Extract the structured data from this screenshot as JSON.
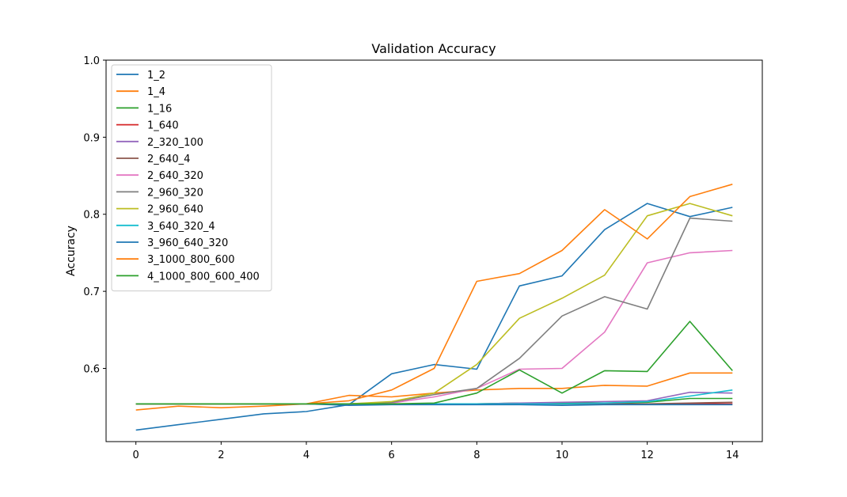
{
  "chart_data": {
    "type": "line",
    "title": "Validation Accuracy",
    "xlabel": "",
    "ylabel": "Accuracy",
    "xlim": [
      -0.7,
      14.7
    ],
    "ylim": [
      0.505,
      1.0
    ],
    "xticks": [
      0,
      2,
      4,
      6,
      8,
      10,
      12,
      14
    ],
    "yticks": [
      0.6,
      0.7,
      0.8,
      0.9,
      1.0
    ],
    "grid": false,
    "legend_position": "upper-left",
    "x": [
      0,
      1,
      2,
      3,
      4,
      5,
      6,
      7,
      8,
      9,
      10,
      11,
      12,
      13,
      14
    ],
    "series": [
      {
        "name": "1_2",
        "color": "#1f77b4",
        "values": [
          0.52,
          0.527,
          0.534,
          0.541,
          0.544,
          0.553,
          0.593,
          0.605,
          0.599,
          0.707,
          0.72,
          0.78,
          0.814,
          0.797,
          0.809
        ]
      },
      {
        "name": "1_4",
        "color": "#ff7f0e",
        "values": [
          0.546,
          0.551,
          0.549,
          0.551,
          0.554,
          0.565,
          0.563,
          0.568,
          0.572,
          0.574,
          0.574,
          0.578,
          0.577,
          0.594,
          0.594
        ]
      },
      {
        "name": "1_16",
        "color": "#2ca02c",
        "values": [
          0.554,
          0.554,
          0.554,
          0.554,
          0.554,
          0.554,
          0.554,
          0.554,
          0.554,
          0.555,
          0.555,
          0.555,
          0.556,
          0.561,
          0.561
        ]
      },
      {
        "name": "1_640",
        "color": "#d62728",
        "values": [
          0.554,
          0.554,
          0.554,
          0.554,
          0.554,
          0.554,
          0.554,
          0.554,
          0.554,
          0.554,
          0.554,
          0.554,
          0.554,
          0.554,
          0.554
        ]
      },
      {
        "name": "2_320_100",
        "color": "#9467bd",
        "values": [
          0.554,
          0.554,
          0.554,
          0.554,
          0.554,
          0.554,
          0.554,
          0.554,
          0.554,
          0.555,
          0.556,
          0.557,
          0.558,
          0.569,
          0.568
        ]
      },
      {
        "name": "2_640_4",
        "color": "#8c564b",
        "values": [
          0.554,
          0.554,
          0.554,
          0.554,
          0.554,
          0.554,
          0.554,
          0.554,
          0.554,
          0.554,
          0.554,
          0.554,
          0.554,
          0.555,
          0.556
        ]
      },
      {
        "name": "2_640_320",
        "color": "#e377c2",
        "values": [
          0.554,
          0.554,
          0.554,
          0.554,
          0.554,
          0.554,
          0.555,
          0.563,
          0.574,
          0.599,
          0.6,
          0.647,
          0.737,
          0.75,
          0.753
        ]
      },
      {
        "name": "2_960_320",
        "color": "#7f7f7f",
        "values": [
          0.554,
          0.554,
          0.554,
          0.554,
          0.554,
          0.554,
          0.556,
          0.566,
          0.574,
          0.613,
          0.668,
          0.693,
          0.677,
          0.795,
          0.791
        ]
      },
      {
        "name": "2_960_640",
        "color": "#bcbd22",
        "values": [
          0.554,
          0.554,
          0.554,
          0.554,
          0.554,
          0.554,
          0.557,
          0.568,
          0.605,
          0.665,
          0.691,
          0.721,
          0.798,
          0.814,
          0.798
        ]
      },
      {
        "name": "3_640_320_4",
        "color": "#17becf",
        "values": [
          0.554,
          0.554,
          0.554,
          0.554,
          0.554,
          0.554,
          0.554,
          0.554,
          0.554,
          0.554,
          0.554,
          0.555,
          0.557,
          0.564,
          0.572
        ]
      },
      {
        "name": "3_960_640_320",
        "color": "#1f77b4",
        "values": [
          0.554,
          0.554,
          0.554,
          0.554,
          0.554,
          0.552,
          0.553,
          0.553,
          0.553,
          0.553,
          0.552,
          0.553,
          0.553,
          0.553,
          0.553
        ]
      },
      {
        "name": "3_1000_800_600",
        "color": "#ff7f0e",
        "values": [
          0.554,
          0.554,
          0.554,
          0.554,
          0.554,
          0.558,
          0.572,
          0.6,
          0.713,
          0.723,
          0.753,
          0.806,
          0.768,
          0.823,
          0.839
        ]
      },
      {
        "name": "4_1000_800_600_400",
        "color": "#2ca02c",
        "values": [
          0.554,
          0.554,
          0.554,
          0.554,
          0.554,
          0.554,
          0.554,
          0.555,
          0.568,
          0.598,
          0.568,
          0.597,
          0.596,
          0.661,
          0.597
        ]
      }
    ]
  }
}
